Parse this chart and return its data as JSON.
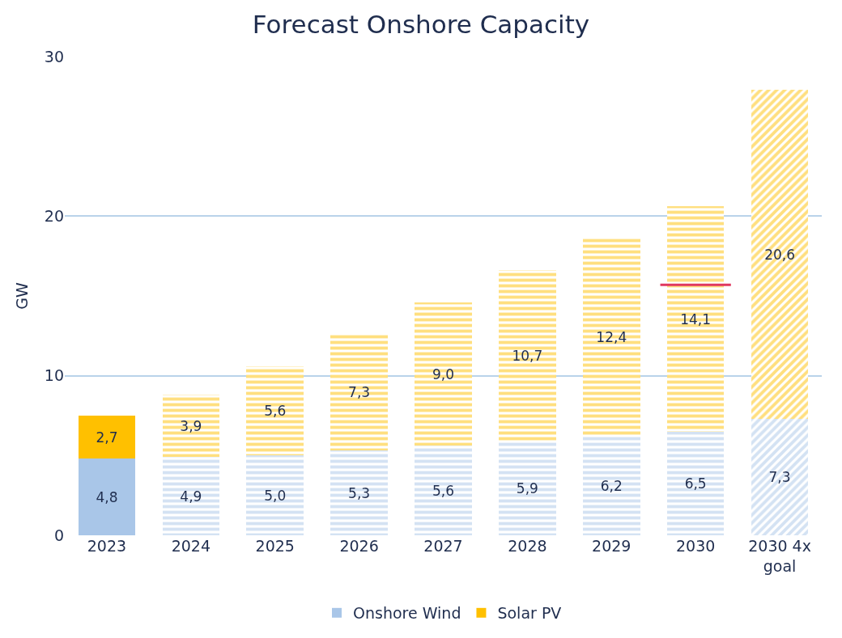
{
  "chart_data": {
    "type": "bar",
    "title": "Forecast Onshore Capacity",
    "ylabel": "GW",
    "categories": [
      "2023",
      "2024",
      "2025",
      "2026",
      "2027",
      "2028",
      "2029",
      "2030",
      "2030 4x goal"
    ],
    "stacked": true,
    "ylim": [
      0,
      30
    ],
    "yticks": [
      0,
      10,
      20,
      30
    ],
    "grid": "y",
    "legend": "bottom",
    "series": [
      {
        "name": "Onshore Wind",
        "color": "#a9c6e8",
        "values": [
          4.8,
          4.9,
          5.0,
          5.3,
          5.6,
          5.9,
          6.2,
          6.5,
          7.3
        ],
        "value_labels": [
          "4,8",
          "4,9",
          "5,0",
          "5,3",
          "5,6",
          "5,9",
          "6,2",
          "6,5",
          "7,3"
        ]
      },
      {
        "name": "Solar PV",
        "color": "#ffc000",
        "values": [
          2.7,
          3.9,
          5.6,
          7.3,
          9.0,
          10.7,
          12.4,
          14.1,
          20.6
        ],
        "value_labels": [
          "2,7",
          "3,9",
          "5,6",
          "7,3",
          "9,0",
          "10,7",
          "12,4",
          "14,1",
          "20,6"
        ]
      }
    ],
    "ref_lines": [
      {
        "axis": "y",
        "value": 15.7,
        "color": "#e0385f"
      }
    ]
  }
}
